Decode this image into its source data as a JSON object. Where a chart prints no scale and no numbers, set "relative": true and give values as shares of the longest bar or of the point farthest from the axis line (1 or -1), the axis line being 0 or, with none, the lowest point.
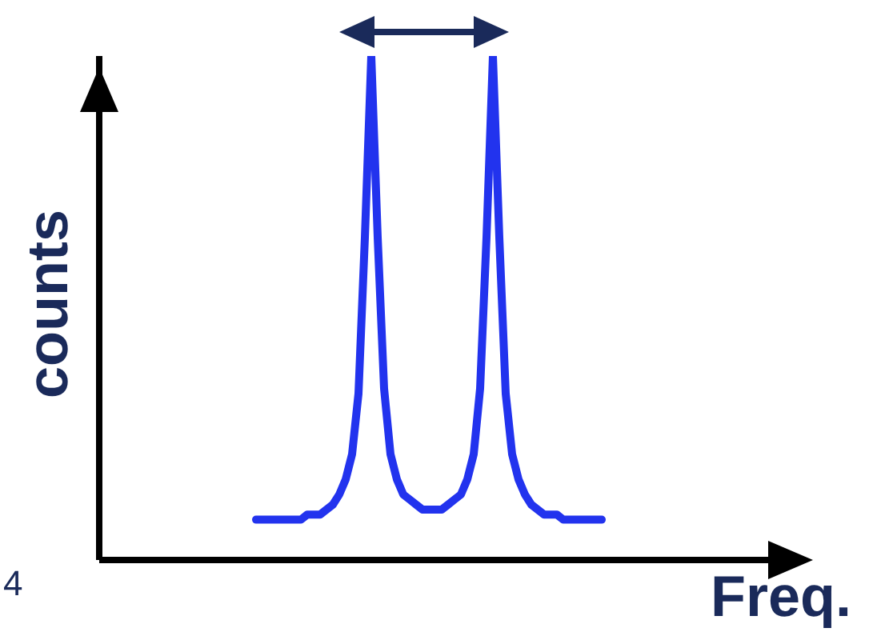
{
  "chart_data": {
    "type": "line",
    "relative": true,
    "xlabel": "Freq.",
    "ylabel": "counts",
    "annotations": [
      "4"
    ],
    "color": "#2233ee",
    "categories": [
      null,
      null,
      null,
      null,
      null,
      null,
      null,
      null,
      null,
      null,
      null,
      null,
      null,
      null,
      null,
      null,
      null,
      null,
      null,
      null,
      null,
      null,
      null,
      null,
      null,
      null,
      null,
      null,
      null,
      null,
      null,
      null,
      null,
      null,
      null,
      null,
      null,
      null,
      null,
      null,
      null,
      null,
      null,
      null,
      null,
      null,
      null,
      null,
      null,
      null,
      null,
      null,
      null,
      null,
      null
    ],
    "values": [
      0.08,
      0.08,
      0.08,
      0.08,
      0.08,
      0.08,
      0.08,
      0.08,
      0.09,
      0.09,
      0.09,
      0.1,
      0.11,
      0.13,
      0.16,
      0.21,
      0.33,
      0.64,
      1.0,
      0.64,
      0.34,
      0.21,
      0.16,
      0.13,
      0.12,
      0.11,
      0.1,
      0.1,
      0.1,
      0.1,
      0.11,
      0.12,
      0.13,
      0.16,
      0.21,
      0.34,
      0.64,
      1.0,
      0.64,
      0.33,
      0.21,
      0.16,
      0.13,
      0.11,
      0.1,
      0.09,
      0.09,
      0.09,
      0.08,
      0.08,
      0.08,
      0.08,
      0.08,
      0.08,
      0.08
    ]
  }
}
